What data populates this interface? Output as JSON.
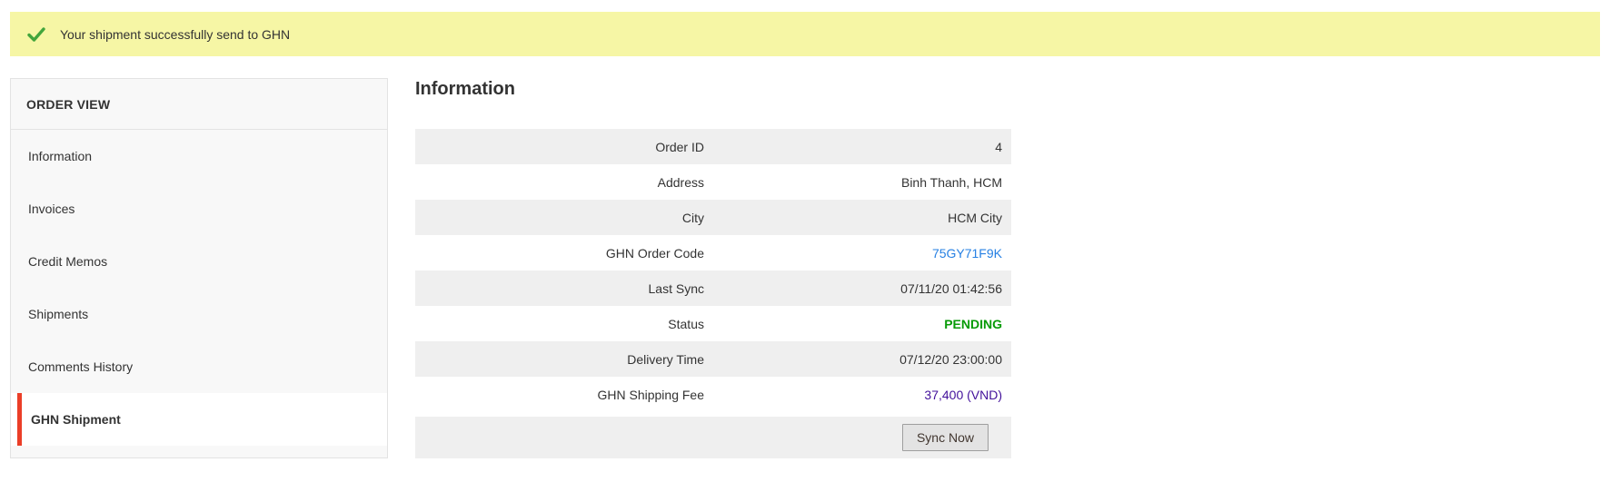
{
  "message": {
    "text": "Your shipment successfully send to GHN"
  },
  "sidebar": {
    "title": "ORDER VIEW",
    "items": [
      {
        "label": "Information",
        "active": false
      },
      {
        "label": "Invoices",
        "active": false
      },
      {
        "label": "Credit Memos",
        "active": false
      },
      {
        "label": "Shipments",
        "active": false
      },
      {
        "label": "Comments History",
        "active": false
      },
      {
        "label": "GHN Shipment",
        "active": true
      }
    ]
  },
  "main": {
    "title": "Information",
    "rows": [
      {
        "label": "Order ID",
        "value": "4",
        "type": "text"
      },
      {
        "label": "Address",
        "value": "Binh Thanh, HCM",
        "type": "text"
      },
      {
        "label": "City",
        "value": "HCM City",
        "type": "text"
      },
      {
        "label": "GHN Order Code",
        "value": "75GY71F9K",
        "type": "link"
      },
      {
        "label": "Last Sync",
        "value": "07/11/20 01:42:56",
        "type": "text"
      },
      {
        "label": "Status",
        "value": "PENDING",
        "type": "status"
      },
      {
        "label": "Delivery Time",
        "value": "07/12/20 23:00:00",
        "type": "text"
      },
      {
        "label": "GHN Shipping Fee",
        "value": "37,400 (VND)",
        "type": "fee"
      }
    ],
    "sync_button_label": "Sync Now"
  },
  "colors": {
    "message_bg": "#f6f6a5",
    "check_green": "#42a53c",
    "active_accent_red": "#eb3e27",
    "row_gray": "#efefef",
    "link_blue": "#2680e3",
    "status_green": "#089b08",
    "fee_purple": "#42109b",
    "sidebar_bg": "#f8f8f8",
    "border_gray": "#e3e3e3"
  }
}
